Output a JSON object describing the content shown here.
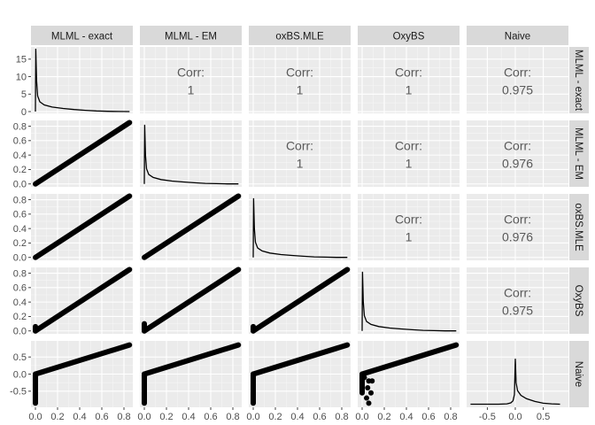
{
  "chart_data": {
    "type": "scatter-matrix",
    "variables": [
      "MLML - exact",
      "MLML - EM",
      "oxBS.MLE",
      "OxyBS",
      "Naive"
    ],
    "x_ticks": [
      "0.0",
      "0.2",
      "0.4",
      "0.6",
      "0.8"
    ],
    "naive_x_ticks": [
      "-0.5",
      "0.0",
      "0.5"
    ],
    "y_ticks_row1": [
      "0",
      "5",
      "10",
      "15"
    ],
    "y_ticks_rows": [
      "0.0",
      "0.2",
      "0.4",
      "0.6",
      "0.8"
    ],
    "y_ticks_naive": [
      "-0.5",
      "0.0",
      "0.5"
    ],
    "corr_label": "Corr:",
    "correlations": [
      {
        "row": 0,
        "col": 1,
        "value": "1"
      },
      {
        "row": 0,
        "col": 2,
        "value": "1"
      },
      {
        "row": 0,
        "col": 3,
        "value": "1"
      },
      {
        "row": 0,
        "col": 4,
        "value": "0.975"
      },
      {
        "row": 1,
        "col": 2,
        "value": "1"
      },
      {
        "row": 1,
        "col": 3,
        "value": "1"
      },
      {
        "row": 1,
        "col": 4,
        "value": "0.976"
      },
      {
        "row": 2,
        "col": 3,
        "value": "1"
      },
      {
        "row": 2,
        "col": 4,
        "value": "0.976"
      },
      {
        "row": 3,
        "col": 4,
        "value": "0.975"
      }
    ],
    "xlim": [
      -0.04,
      0.88
    ],
    "naive_xlim": [
      -0.87,
      0.95
    ],
    "row_ylims": [
      [
        -0.5,
        18.5
      ],
      [
        -0.04,
        0.88
      ],
      [
        -0.04,
        0.88
      ],
      [
        -0.04,
        0.88
      ],
      [
        -0.97,
        0.97
      ]
    ],
    "scatter_lines": [
      {
        "row": 1,
        "col": 0,
        "from": [
          0.0,
          0.0
        ],
        "to": [
          0.85,
          0.85
        ]
      },
      {
        "row": 2,
        "col": 0,
        "from": [
          0.0,
          0.0
        ],
        "to": [
          0.85,
          0.85
        ]
      },
      {
        "row": 2,
        "col": 1,
        "from": [
          0.0,
          0.0
        ],
        "to": [
          0.85,
          0.85
        ]
      },
      {
        "row": 3,
        "col": 0,
        "from": [
          0.0,
          0.0
        ],
        "to": [
          0.85,
          0.85
        ]
      },
      {
        "row": 3,
        "col": 1,
        "from": [
          0.0,
          0.0
        ],
        "to": [
          0.85,
          0.85
        ]
      },
      {
        "row": 3,
        "col": 2,
        "from": [
          0.0,
          0.0
        ],
        "to": [
          0.85,
          0.85
        ]
      },
      {
        "row": 4,
        "col": 0,
        "from": [
          0.0,
          0.0
        ],
        "to": [
          0.85,
          0.85
        ]
      },
      {
        "row": 4,
        "col": 1,
        "from": [
          0.0,
          0.0
        ],
        "to": [
          0.85,
          0.85
        ]
      },
      {
        "row": 4,
        "col": 2,
        "from": [
          0.0,
          0.0
        ],
        "to": [
          0.85,
          0.85
        ]
      },
      {
        "row": 4,
        "col": 3,
        "from": [
          0.0,
          0.0
        ],
        "to": [
          0.85,
          0.85
        ]
      }
    ],
    "scatter_lines_low": [
      {
        "row": 3,
        "col": 0,
        "from": [
          0.0,
          0.0
        ],
        "to": [
          0.0,
          0.06
        ]
      },
      {
        "row": 3,
        "col": 1,
        "from": [
          0.0,
          0.0
        ],
        "to": [
          0.0,
          0.1
        ]
      },
      {
        "row": 3,
        "col": 2,
        "from": [
          0.0,
          0.0
        ],
        "to": [
          0.0,
          0.06
        ]
      },
      {
        "row": 4,
        "col": 0,
        "from": [
          0.0,
          -0.85
        ],
        "to": [
          0.0,
          0.0
        ]
      },
      {
        "row": 4,
        "col": 1,
        "from": [
          0.0,
          -0.85
        ],
        "to": [
          0.0,
          0.0
        ]
      },
      {
        "row": 4,
        "col": 2,
        "from": [
          0.0,
          -0.85
        ],
        "to": [
          0.0,
          0.0
        ]
      },
      {
        "row": 4,
        "col": 3,
        "from": [
          0.0,
          -0.55
        ],
        "to": [
          0.0,
          0.0
        ]
      }
    ],
    "extra_points": [
      {
        "row": 4,
        "col": 3,
        "x": 0.06,
        "y": -0.2
      },
      {
        "row": 4,
        "col": 3,
        "x": 0.05,
        "y": -0.4
      },
      {
        "row": 4,
        "col": 3,
        "x": 0.09,
        "y": -0.2
      },
      {
        "row": 4,
        "col": 3,
        "x": 0.08,
        "y": -0.55
      },
      {
        "row": 4,
        "col": 3,
        "x": 0.04,
        "y": -0.7
      },
      {
        "row": 4,
        "col": 3,
        "x": 0.06,
        "y": -0.85
      },
      {
        "row": 4,
        "col": 3,
        "x": 0.02,
        "y": -0.1
      }
    ],
    "density_curves": [
      {
        "row": 0,
        "col": 0,
        "points": [
          [
            0.0,
            0
          ],
          [
            0.003,
            18.0
          ],
          [
            0.01,
            9.0
          ],
          [
            0.02,
            4.5
          ],
          [
            0.04,
            2.8
          ],
          [
            0.08,
            1.9
          ],
          [
            0.15,
            1.3
          ],
          [
            0.25,
            0.9
          ],
          [
            0.35,
            0.6
          ],
          [
            0.45,
            0.35
          ],
          [
            0.55,
            0.18
          ],
          [
            0.65,
            0.08
          ],
          [
            0.75,
            0.03
          ],
          [
            0.85,
            0.0
          ]
        ]
      },
      {
        "row": 1,
        "col": 1,
        "points": [
          [
            0.0,
            0
          ],
          [
            0.003,
            0.82
          ],
          [
            0.01,
            0.4
          ],
          [
            0.02,
            0.21
          ],
          [
            0.04,
            0.13
          ],
          [
            0.08,
            0.09
          ],
          [
            0.15,
            0.06
          ],
          [
            0.25,
            0.04
          ],
          [
            0.35,
            0.028
          ],
          [
            0.45,
            0.016
          ],
          [
            0.55,
            0.008
          ],
          [
            0.65,
            0.004
          ],
          [
            0.75,
            0.001
          ],
          [
            0.85,
            0.0
          ]
        ]
      },
      {
        "row": 2,
        "col": 2,
        "points": [
          [
            0.0,
            0
          ],
          [
            0.003,
            0.82
          ],
          [
            0.01,
            0.4
          ],
          [
            0.02,
            0.21
          ],
          [
            0.04,
            0.13
          ],
          [
            0.08,
            0.09
          ],
          [
            0.15,
            0.06
          ],
          [
            0.25,
            0.04
          ],
          [
            0.35,
            0.028
          ],
          [
            0.45,
            0.016
          ],
          [
            0.55,
            0.008
          ],
          [
            0.65,
            0.004
          ],
          [
            0.75,
            0.001
          ],
          [
            0.85,
            0.0
          ]
        ]
      },
      {
        "row": 3,
        "col": 3,
        "points": [
          [
            0.0,
            0
          ],
          [
            0.003,
            0.82
          ],
          [
            0.01,
            0.4
          ],
          [
            0.02,
            0.21
          ],
          [
            0.04,
            0.13
          ],
          [
            0.08,
            0.09
          ],
          [
            0.15,
            0.06
          ],
          [
            0.25,
            0.04
          ],
          [
            0.35,
            0.028
          ],
          [
            0.45,
            0.016
          ],
          [
            0.55,
            0.008
          ],
          [
            0.65,
            0.004
          ],
          [
            0.75,
            0.001
          ],
          [
            0.85,
            0.0
          ]
        ]
      },
      {
        "row": 4,
        "col": 4,
        "points": [
          [
            -0.8,
            -0.88
          ],
          [
            -0.3,
            -0.88
          ],
          [
            -0.15,
            -0.87
          ],
          [
            -0.08,
            -0.84
          ],
          [
            -0.04,
            -0.78
          ],
          [
            -0.015,
            -0.6
          ],
          [
            0.0,
            0.45
          ],
          [
            0.015,
            -0.25
          ],
          [
            0.04,
            -0.48
          ],
          [
            0.1,
            -0.62
          ],
          [
            0.2,
            -0.72
          ],
          [
            0.35,
            -0.8
          ],
          [
            0.5,
            -0.85
          ],
          [
            0.65,
            -0.87
          ],
          [
            0.8,
            -0.88
          ]
        ]
      }
    ],
    "grid": true,
    "legend": "none"
  }
}
